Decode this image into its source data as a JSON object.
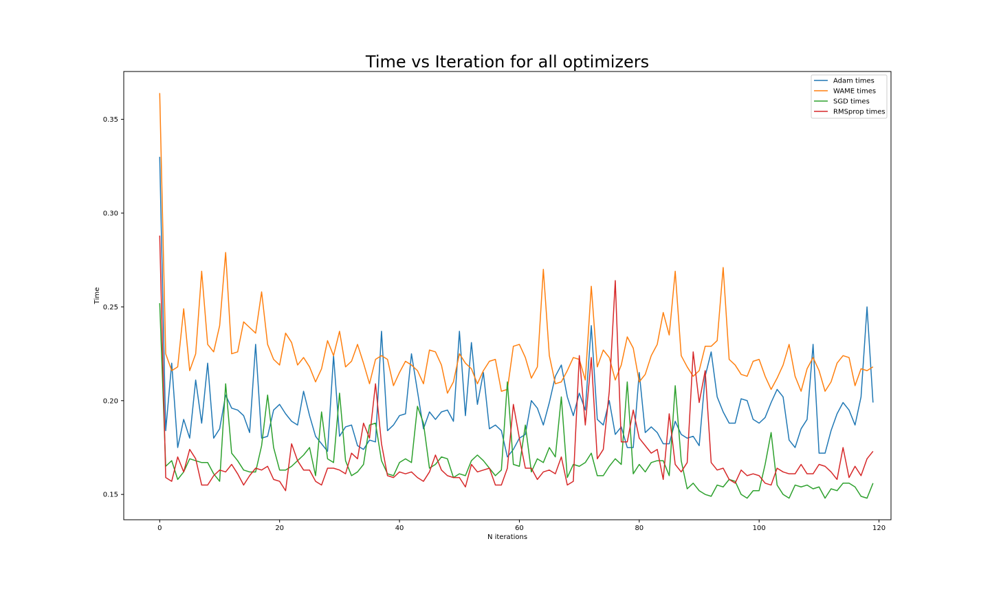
{
  "chart_data": {
    "type": "line",
    "title": "Time vs Iteration for all optimizers",
    "xlabel": "N iterations",
    "ylabel": "Time",
    "xlim": [
      -6,
      122
    ],
    "ylim": [
      0.1365,
      0.3755
    ],
    "xticks": [
      0,
      20,
      40,
      60,
      80,
      100,
      120
    ],
    "yticks": [
      0.15,
      0.2,
      0.25,
      0.3,
      0.35
    ],
    "xtick_labels": [
      "0",
      "20",
      "40",
      "60",
      "80",
      "100",
      "120"
    ],
    "ytick_labels": [
      "0.15",
      "0.20",
      "0.25",
      "0.30",
      "0.35"
    ],
    "grid": false,
    "legend_position": "top-right",
    "series": [
      {
        "name": "Adam times",
        "color": "#1f77b4",
        "values": [
          0.33,
          0.184,
          0.22,
          0.175,
          0.19,
          0.18,
          0.211,
          0.188,
          0.22,
          0.18,
          0.185,
          0.203,
          0.196,
          0.195,
          0.192,
          0.183,
          0.23,
          0.18,
          0.181,
          0.195,
          0.198,
          0.193,
          0.189,
          0.187,
          0.205,
          0.192,
          0.181,
          0.177,
          0.173,
          0.224,
          0.181,
          0.186,
          0.187,
          0.176,
          0.174,
          0.179,
          0.178,
          0.237,
          0.184,
          0.187,
          0.192,
          0.193,
          0.225,
          0.205,
          0.185,
          0.194,
          0.19,
          0.194,
          0.195,
          0.189,
          0.237,
          0.192,
          0.231,
          0.198,
          0.215,
          0.185,
          0.187,
          0.184,
          0.17,
          0.174,
          0.18,
          0.182,
          0.2,
          0.196,
          0.187,
          0.199,
          0.213,
          0.219,
          0.202,
          0.192,
          0.204,
          0.195,
          0.24,
          0.19,
          0.187,
          0.2,
          0.182,
          0.186,
          0.175,
          0.175,
          0.215,
          0.183,
          0.186,
          0.183,
          0.177,
          0.177,
          0.189,
          0.182,
          0.18,
          0.181,
          0.176,
          0.213,
          0.226,
          0.202,
          0.194,
          0.188,
          0.188,
          0.201,
          0.2,
          0.19,
          0.188,
          0.191,
          0.199,
          0.206,
          0.202,
          0.179,
          0.175,
          0.185,
          0.19,
          0.23,
          0.172,
          0.172,
          0.184,
          0.193,
          0.199,
          0.195,
          0.187,
          0.202,
          0.25,
          0.199
        ]
      },
      {
        "name": "WAME times",
        "color": "#ff7f0e",
        "values": [
          0.364,
          0.225,
          0.216,
          0.218,
          0.249,
          0.216,
          0.225,
          0.269,
          0.23,
          0.226,
          0.24,
          0.279,
          0.225,
          0.226,
          0.242,
          0.239,
          0.236,
          0.258,
          0.23,
          0.222,
          0.219,
          0.236,
          0.231,
          0.219,
          0.223,
          0.218,
          0.21,
          0.217,
          0.232,
          0.224,
          0.237,
          0.218,
          0.221,
          0.23,
          0.22,
          0.209,
          0.222,
          0.224,
          0.222,
          0.208,
          0.215,
          0.221,
          0.219,
          0.216,
          0.209,
          0.227,
          0.226,
          0.219,
          0.204,
          0.21,
          0.225,
          0.22,
          0.217,
          0.209,
          0.216,
          0.221,
          0.222,
          0.205,
          0.206,
          0.229,
          0.23,
          0.223,
          0.212,
          0.218,
          0.27,
          0.224,
          0.209,
          0.21,
          0.216,
          0.223,
          0.222,
          0.211,
          0.261,
          0.218,
          0.227,
          0.223,
          0.211,
          0.219,
          0.234,
          0.228,
          0.21,
          0.214,
          0.224,
          0.23,
          0.247,
          0.235,
          0.269,
          0.224,
          0.218,
          0.213,
          0.216,
          0.229,
          0.229,
          0.232,
          0.271,
          0.222,
          0.219,
          0.214,
          0.213,
          0.221,
          0.222,
          0.213,
          0.206,
          0.212,
          0.219,
          0.23,
          0.213,
          0.205,
          0.217,
          0.223,
          0.216,
          0.205,
          0.21,
          0.22,
          0.224,
          0.223,
          0.208,
          0.217,
          0.216,
          0.218
        ]
      },
      {
        "name": "SGD times",
        "color": "#2ca02c",
        "values": [
          0.252,
          0.165,
          0.168,
          0.158,
          0.162,
          0.169,
          0.168,
          0.167,
          0.167,
          0.161,
          0.157,
          0.209,
          0.172,
          0.168,
          0.163,
          0.162,
          0.162,
          0.176,
          0.203,
          0.175,
          0.163,
          0.163,
          0.165,
          0.168,
          0.171,
          0.175,
          0.16,
          0.194,
          0.169,
          0.167,
          0.204,
          0.168,
          0.16,
          0.162,
          0.166,
          0.187,
          0.188,
          0.168,
          0.161,
          0.16,
          0.167,
          0.169,
          0.167,
          0.197,
          0.188,
          0.164,
          0.166,
          0.17,
          0.169,
          0.159,
          0.161,
          0.16,
          0.168,
          0.171,
          0.168,
          0.164,
          0.16,
          0.163,
          0.21,
          0.166,
          0.165,
          0.187,
          0.162,
          0.169,
          0.167,
          0.175,
          0.17,
          0.202,
          0.159,
          0.166,
          0.165,
          0.167,
          0.172,
          0.16,
          0.16,
          0.165,
          0.169,
          0.166,
          0.21,
          0.161,
          0.166,
          0.162,
          0.167,
          0.168,
          0.168,
          0.16,
          0.208,
          0.168,
          0.153,
          0.156,
          0.152,
          0.15,
          0.149,
          0.155,
          0.154,
          0.158,
          0.157,
          0.15,
          0.148,
          0.152,
          0.152,
          0.166,
          0.183,
          0.155,
          0.15,
          0.148,
          0.155,
          0.154,
          0.155,
          0.153,
          0.154,
          0.148,
          0.153,
          0.152,
          0.156,
          0.156,
          0.154,
          0.149,
          0.148,
          0.156
        ]
      },
      {
        "name": "RMSprop times",
        "color": "#d62728",
        "values": [
          0.288,
          0.159,
          0.157,
          0.17,
          0.162,
          0.174,
          0.169,
          0.155,
          0.155,
          0.16,
          0.163,
          0.162,
          0.166,
          0.161,
          0.155,
          0.16,
          0.164,
          0.163,
          0.165,
          0.158,
          0.157,
          0.152,
          0.177,
          0.168,
          0.163,
          0.163,
          0.157,
          0.155,
          0.164,
          0.164,
          0.163,
          0.161,
          0.172,
          0.169,
          0.188,
          0.18,
          0.209,
          0.177,
          0.16,
          0.159,
          0.162,
          0.161,
          0.162,
          0.159,
          0.157,
          0.162,
          0.171,
          0.163,
          0.16,
          0.159,
          0.159,
          0.154,
          0.166,
          0.162,
          0.163,
          0.164,
          0.155,
          0.155,
          0.164,
          0.198,
          0.18,
          0.164,
          0.164,
          0.158,
          0.162,
          0.163,
          0.161,
          0.17,
          0.155,
          0.157,
          0.224,
          0.187,
          0.223,
          0.169,
          0.174,
          0.205,
          0.264,
          0.178,
          0.178,
          0.195,
          0.18,
          0.176,
          0.172,
          0.174,
          0.158,
          0.193,
          0.166,
          0.162,
          0.167,
          0.226,
          0.199,
          0.216,
          0.167,
          0.163,
          0.164,
          0.158,
          0.156,
          0.163,
          0.16,
          0.161,
          0.16,
          0.156,
          0.155,
          0.164,
          0.162,
          0.161,
          0.161,
          0.166,
          0.161,
          0.161,
          0.166,
          0.165,
          0.162,
          0.158,
          0.175,
          0.159,
          0.165,
          0.16,
          0.169,
          0.173
        ]
      }
    ]
  }
}
